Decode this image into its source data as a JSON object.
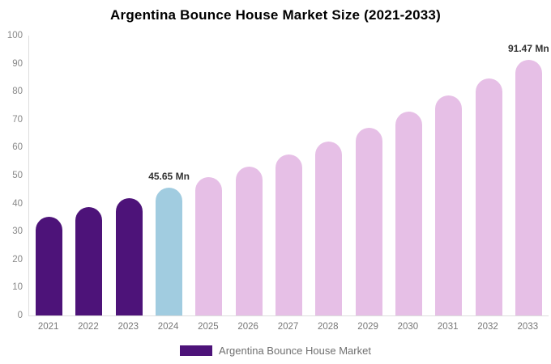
{
  "title": "Argentina Bounce House Market Size (2021-2033)",
  "legend": {
    "label": "Argentina Bounce House Market",
    "swatch_color": "#4D1379"
  },
  "colors": {
    "historical": "#4D1379",
    "current": "#A1CCE0",
    "forecast": "#E6BFE6",
    "axis_line": "#DDDDDD",
    "y_tick_text": "#888888",
    "x_tick_text": "#777777",
    "data_label_text": "#333333",
    "title_text": "#000000"
  },
  "chart_data": {
    "type": "bar",
    "title": "Argentina Bounce House Market Size (2021-2033)",
    "categories": [
      "2021",
      "2022",
      "2023",
      "2024",
      "2025",
      "2026",
      "2027",
      "2028",
      "2029",
      "2030",
      "2031",
      "2032",
      "2033"
    ],
    "values": [
      35.4,
      38.7,
      42.0,
      45.65,
      49.3,
      53.3,
      57.6,
      62.2,
      67.2,
      72.7,
      78.5,
      84.8,
      91.47
    ],
    "unit": "Mn",
    "bar_color_keys": [
      "historical",
      "historical",
      "historical",
      "current",
      "forecast",
      "forecast",
      "forecast",
      "forecast",
      "forecast",
      "forecast",
      "forecast",
      "forecast",
      "forecast"
    ],
    "data_labels": [
      "",
      "",
      "",
      "45.65 Mn",
      "",
      "",
      "",
      "",
      "",
      "",
      "",
      "",
      "91.47 Mn"
    ],
    "xlabel": "",
    "ylabel": "",
    "ylim": [
      0,
      100
    ],
    "y_ticks": [
      0,
      10,
      20,
      30,
      40,
      50,
      60,
      70,
      80,
      90,
      100
    ],
    "grid": false,
    "legend_position": "bottom",
    "legend_entries": [
      "Argentina Bounce House Market"
    ]
  }
}
